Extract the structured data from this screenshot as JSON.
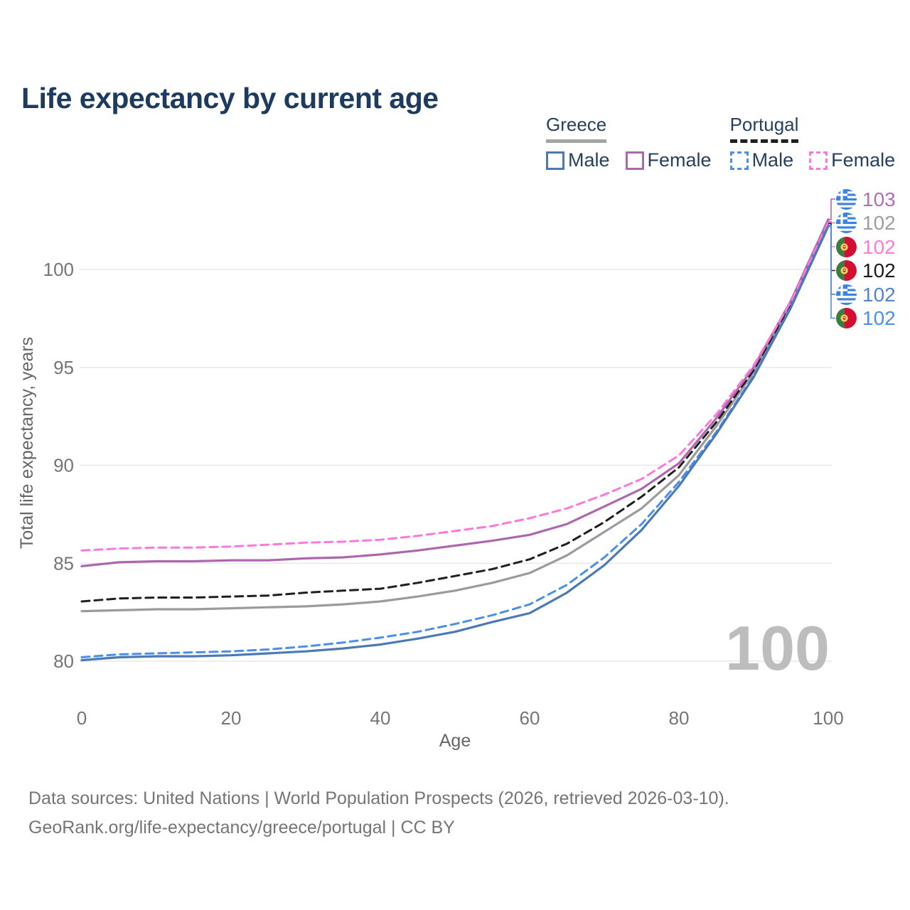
{
  "title": "Life expectancy by current age",
  "colors": {
    "title_text": "#1d3b5f",
    "legend_text": "#27405f",
    "axis_text": "#757575",
    "axis_title_text": "#666666",
    "grid": "#e8e8e8",
    "footer_text": "#757575",
    "watermark_text": "#bdbdbd",
    "greece_male": "#4a79b5",
    "greece_female": "#ad68ad",
    "greece_total": "#9b9b9b",
    "portugal_male": "#4a8feb",
    "portugal_female": "#ff77dc",
    "portugal_total": "#1f1f1f",
    "greece_underline": "#a3a3a3",
    "portugal_underline": "#1f1f1f",
    "flag_blue": "#3d84de",
    "flag_white": "#ffffff",
    "flag_green": "#3a7d3f",
    "flag_red": "#d20f33",
    "flag_yellow": "#ffd24f"
  },
  "legend": {
    "groups": [
      {
        "key": "greece",
        "label": "Greece",
        "style": "solid",
        "underline": "greece_underline",
        "items": [
          {
            "key": "greece_male",
            "label": "Male"
          },
          {
            "key": "greece_female",
            "label": "Female"
          }
        ]
      },
      {
        "key": "portugal",
        "label": "Portugal",
        "style": "dashed",
        "underline": "portugal_underline",
        "items": [
          {
            "key": "portugal_male",
            "label": "Male"
          },
          {
            "key": "portugal_female",
            "label": "Female"
          }
        ]
      }
    ]
  },
  "chart_data": {
    "type": "line",
    "title": "Life expectancy by current age",
    "xlabel": "Age",
    "ylabel": "Total life expectancy, years",
    "xticks": [
      0,
      20,
      40,
      60,
      80,
      100
    ],
    "yticks": [
      80,
      85,
      90,
      95,
      100
    ],
    "xlim": [
      0,
      100
    ],
    "ylim": [
      78,
      104
    ],
    "grid": "horizontal-only",
    "legend_position": "top-right",
    "x": [
      0,
      5,
      10,
      15,
      20,
      25,
      30,
      35,
      40,
      45,
      50,
      55,
      60,
      65,
      70,
      75,
      80,
      85,
      90,
      95,
      100
    ],
    "series": [
      {
        "key": "greece_total",
        "name": "Greece Both sexes",
        "country": "Greece",
        "dash": false,
        "values": [
          82.55,
          82.6,
          82.65,
          82.65,
          82.7,
          82.75,
          82.8,
          82.9,
          83.05,
          83.3,
          83.6,
          84.0,
          84.5,
          85.4,
          86.6,
          87.8,
          89.5,
          92.0,
          94.75,
          98.2,
          102.45
        ]
      },
      {
        "key": "portugal_total",
        "name": "Portugal Both sexes",
        "country": "Portugal",
        "dash": true,
        "values": [
          83.05,
          83.2,
          83.25,
          83.25,
          83.3,
          83.35,
          83.5,
          83.6,
          83.7,
          84.0,
          84.35,
          84.7,
          85.2,
          86.0,
          87.1,
          88.4,
          89.9,
          92.2,
          94.85,
          98.25,
          102.35
        ]
      },
      {
        "key": "greece_female",
        "name": "Greece Female",
        "country": "Greece",
        "dash": false,
        "values": [
          84.85,
          85.05,
          85.1,
          85.1,
          85.15,
          85.15,
          85.25,
          85.3,
          85.45,
          85.65,
          85.9,
          86.15,
          86.45,
          87.0,
          87.9,
          88.8,
          90.1,
          92.4,
          95.0,
          98.4,
          102.55
        ]
      },
      {
        "key": "portugal_female",
        "name": "Portugal Female",
        "country": "Portugal",
        "dash": true,
        "values": [
          85.65,
          85.75,
          85.8,
          85.8,
          85.85,
          85.95,
          86.05,
          86.1,
          86.2,
          86.4,
          86.65,
          86.9,
          87.3,
          87.8,
          88.5,
          89.3,
          90.5,
          92.6,
          95.1,
          98.35,
          102.4
        ]
      },
      {
        "key": "portugal_male",
        "name": "Portugal Male",
        "country": "Portugal",
        "dash": true,
        "values": [
          80.2,
          80.35,
          80.4,
          80.45,
          80.5,
          80.6,
          80.75,
          80.95,
          81.2,
          81.5,
          81.9,
          82.35,
          82.9,
          83.9,
          85.3,
          87.0,
          89.15,
          91.7,
          94.55,
          98.1,
          102.25
        ]
      },
      {
        "key": "greece_male",
        "name": "Greece Male",
        "country": "Greece",
        "dash": false,
        "values": [
          80.05,
          80.2,
          80.25,
          80.25,
          80.3,
          80.4,
          80.5,
          80.65,
          80.85,
          81.15,
          81.5,
          82.0,
          82.45,
          83.5,
          84.9,
          86.7,
          88.95,
          91.6,
          94.5,
          98.05,
          102.2
        ]
      }
    ]
  },
  "end_labels": [
    {
      "series": "greece_female",
      "flag": "greece",
      "value": "103",
      "color": "#b16fb4"
    },
    {
      "series": "greece_total",
      "flag": "greece",
      "value": "102",
      "color": "#9e9e9e"
    },
    {
      "series": "portugal_female",
      "flag": "portugal",
      "value": "102",
      "color": "#ff7ade"
    },
    {
      "series": "portugal_total",
      "flag": "portugal",
      "value": "102",
      "color": "#1c1c1c"
    },
    {
      "series": "greece_male",
      "flag": "greece",
      "value": "102",
      "color": "#5284cc"
    },
    {
      "series": "portugal_male",
      "flag": "portugal",
      "value": "102",
      "color": "#4a90ea"
    }
  ],
  "watermark": "100",
  "footer": {
    "line1": "Data sources: United Nations | World Population Prospects (2026, retrieved 2026-03-10).",
    "line2": "GeoRank.org/life-expectancy/greece/portugal | CC BY"
  }
}
